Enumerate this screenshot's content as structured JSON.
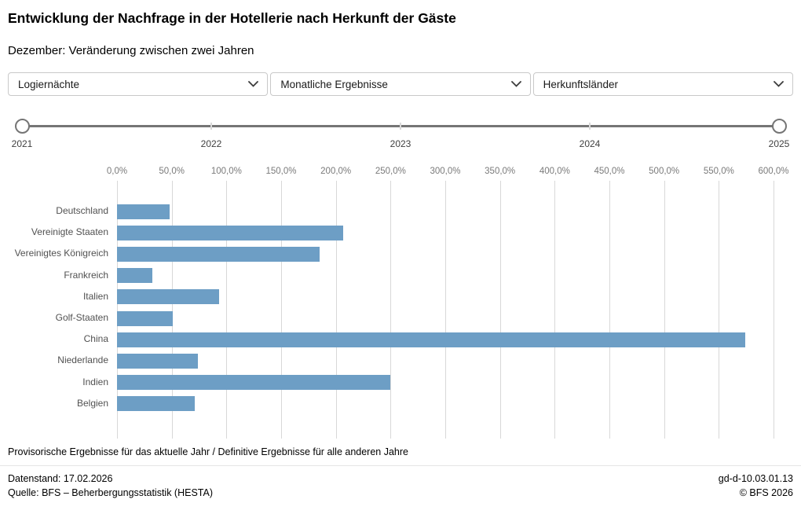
{
  "header": {
    "title": "Entwicklung der Nachfrage in der Hotellerie nach Herkunft der Gäste",
    "subtitle": "Dezember: Veränderung zwischen zwei Jahren"
  },
  "filters": {
    "indicator": {
      "value": "Logiernächte"
    },
    "periodicity": {
      "value": "Monatliche Ergebnisse"
    },
    "breakdown": {
      "value": "Herkunftsländer"
    }
  },
  "year_slider": {
    "labels": [
      "2021",
      "2022",
      "2023",
      "2024",
      "2025"
    ],
    "selected_range": [
      "2021",
      "2025"
    ]
  },
  "chart_data": {
    "type": "bar",
    "orientation": "horizontal",
    "title": "Dezember: Veränderung zwischen zwei Jahren",
    "categories": [
      "Deutschland",
      "Vereinigte Staaten",
      "Vereinigtes Königreich",
      "Frankreich",
      "Italien",
      "Golf-Staaten",
      "China",
      "Niederlande",
      "Indien",
      "Belgien"
    ],
    "values": [
      48,
      207,
      185,
      32,
      93,
      51,
      574,
      74,
      250,
      71
    ],
    "unit": "%",
    "x_ticks": [
      "0,0%",
      "50,0%",
      "100,0%",
      "150,0%",
      "200,0%",
      "250,0%",
      "300,0%",
      "350,0%",
      "400,0%",
      "450,0%",
      "500,0%",
      "550,0%",
      "600,0%"
    ],
    "x_tick_values": [
      0,
      50,
      100,
      150,
      200,
      250,
      300,
      350,
      400,
      450,
      500,
      550,
      600
    ],
    "xlim": [
      0,
      600
    ],
    "grid": true,
    "legend": "none",
    "bar_color": "#6d9ec5"
  },
  "footer": {
    "note": "Provisorische Ergebnisse für das aktuelle Jahr / Definitive Ergebnisse für alle anderen Jahre",
    "data_status": "Datenstand: 17.02.2026",
    "source": "Quelle: BFS – Beherbergungsstatistik (HESTA)",
    "reference": "gd-d-10.03.01.13",
    "copyright": "© BFS 2026"
  }
}
